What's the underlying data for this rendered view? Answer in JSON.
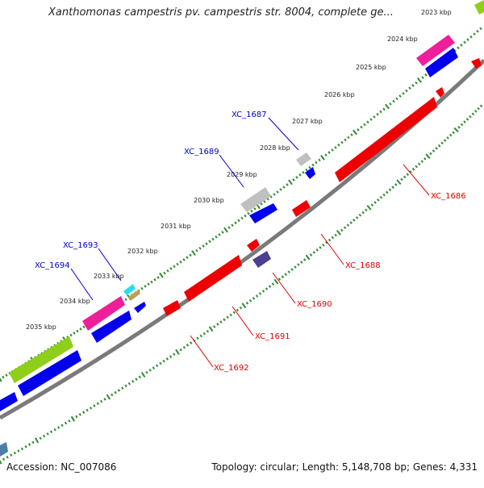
{
  "title": "Xanthomonas campestris pv. campestris str. 8004, complete ge...",
  "footer": {
    "accession": "Accession: NC_007086",
    "summary": "Topology: circular; Length: 5,148,708 bp; Genes: 4,331"
  },
  "colors": {
    "backbone": "#808080",
    "ticks": "#2e8b2e",
    "forward_label": "#0000cc",
    "reverse_label": "#dd0000",
    "blue": "#0000ee",
    "red": "#ee0000",
    "pink": "#ee1f9a",
    "green": "#8fce1a",
    "grey": "#bbbbbb",
    "purple": "#4b3f8f",
    "cyan": "#22e0f0",
    "tan": "#b8a05a",
    "steel": "#4a7fa8"
  },
  "kbp_labels": [
    "2023 kbp",
    "2024 kbp",
    "2025 kbp",
    "2026 kbp",
    "2027 kbp",
    "2028 kbp",
    "2029 kbp",
    "2030 kbp",
    "2031 kbp",
    "2032 kbp",
    "2033 kbp",
    "2034 kbp",
    "2035 kbp"
  ],
  "gene_labels_forward": [
    "XC_1687",
    "XC_1689",
    "XC_1693",
    "XC_1694"
  ],
  "gene_labels_reverse": [
    "XC_1686",
    "XC_1688",
    "XC_1690",
    "XC_1691",
    "XC_1692"
  ]
}
